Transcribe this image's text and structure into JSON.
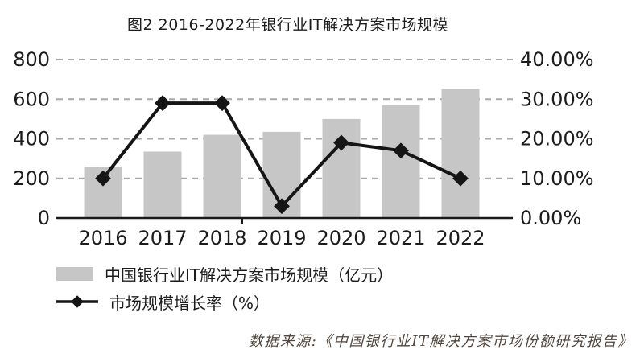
{
  "title": "图2 2016-2022年银行业IT解决方案市场规模",
  "source": "数据来源:《中国银行业IT解决方案市场份额研究报告》",
  "colors": {
    "bar": "#c6c6c6",
    "line": "#151515",
    "grid": "#a9a9a9",
    "axis": "#1a1a1a",
    "text": "#1c1c1c",
    "source_text": "#50463e"
  },
  "legend": {
    "items": [
      {
        "label": "中国银行业IT解决方案市场规模（亿元）",
        "marker": "bar-swatch"
      },
      {
        "label": "市场规模增长率（%）",
        "marker": "line-diamond"
      }
    ]
  },
  "chart_data": {
    "type": "bar",
    "subtype": "bar+line combo",
    "title": "图2 2016-2022年银行业IT解决方案市场规模",
    "categories": [
      "2016",
      "2017",
      "2018",
      "2019",
      "2020",
      "2021",
      "2022"
    ],
    "series": [
      {
        "name": "中国银行业IT解决方案市场规模（亿元）",
        "type": "bar",
        "axis": "left",
        "values": [
          260,
          335,
          420,
          435,
          500,
          570,
          650
        ]
      },
      {
        "name": "市场规模增长率（%）",
        "type": "line",
        "axis": "right",
        "marker": "diamond",
        "values": [
          10,
          29,
          29,
          3,
          19,
          17,
          10
        ]
      }
    ],
    "left_axis": {
      "range": [
        0,
        800
      ],
      "ticks": [
        0,
        200,
        400,
        600,
        800
      ],
      "labels": [
        "0",
        "200",
        "400",
        "600",
        "800"
      ]
    },
    "right_axis": {
      "range": [
        0,
        40
      ],
      "ticks": [
        0,
        10,
        20,
        30,
        40
      ],
      "labels": [
        "0.00%",
        "10.00%",
        "20.00%",
        "30.00%",
        "40.00%"
      ]
    },
    "grid": true,
    "legend_position": "bottom-left"
  }
}
